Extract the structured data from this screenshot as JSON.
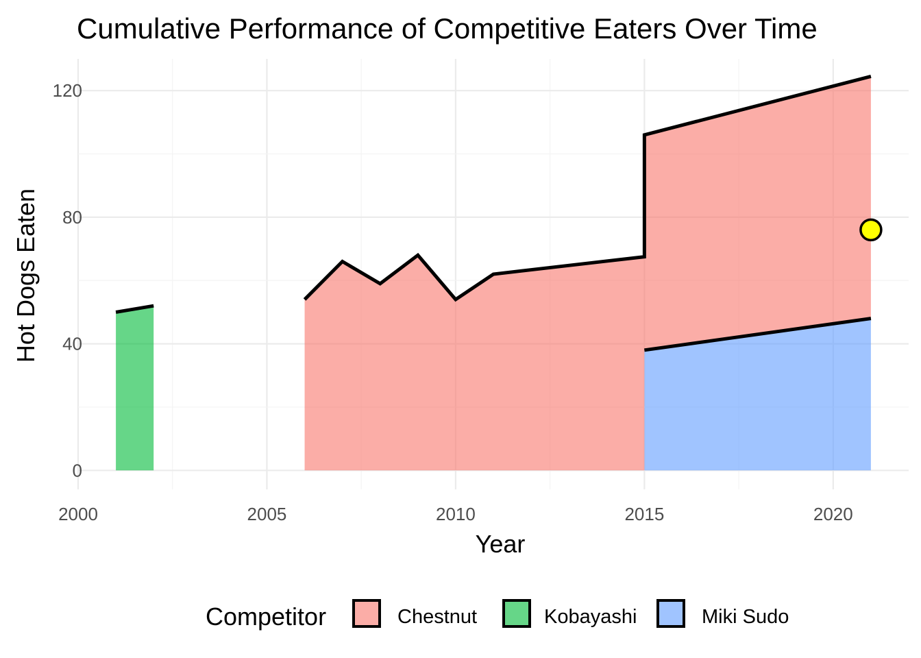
{
  "chart_data": {
    "type": "area",
    "title": "Cumulative Performance of Competitive Eaters Over Time",
    "xlabel": "Year",
    "ylabel": "Hot Dogs Eaten",
    "xlim": [
      2000,
      2022
    ],
    "ylim": [
      -6,
      130
    ],
    "x_ticks": [
      2000,
      2005,
      2010,
      2015,
      2020
    ],
    "y_ticks": [
      0,
      40,
      80,
      120
    ],
    "grid": true,
    "legend": {
      "title": "Competitor",
      "position": "bottom",
      "entries": [
        "Chestnut",
        "Kobayashi",
        "Miki Sudo"
      ]
    },
    "series": [
      {
        "name": "Miki Sudo",
        "color": "#619CFF",
        "points": [
          [
            2015,
            38
          ],
          [
            2021,
            48
          ]
        ]
      },
      {
        "name": "Chestnut",
        "color": "#F8766D",
        "points": [
          [
            2006,
            54
          ],
          [
            2007,
            66
          ],
          [
            2008,
            59
          ],
          [
            2009,
            68
          ],
          [
            2010,
            54
          ],
          [
            2011,
            62
          ],
          [
            2015,
            67.5
          ],
          [
            2015,
            106
          ],
          [
            2021,
            124.5
          ]
        ],
        "baseline": [
          [
            2006,
            0
          ],
          [
            2015,
            0
          ],
          [
            2015,
            38
          ],
          [
            2021,
            48
          ]
        ]
      },
      {
        "name": "Kobayashi",
        "color": "#00BA38",
        "points": [
          [
            2001,
            50
          ],
          [
            2002,
            52
          ]
        ]
      }
    ],
    "highlight_point": {
      "x": 2021,
      "y": 76,
      "color": "#FFFF00"
    }
  }
}
